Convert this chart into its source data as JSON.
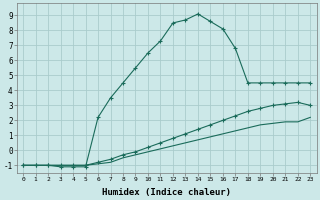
{
  "xlabel": "Humidex (Indice chaleur)",
  "bg_color": "#cce8e8",
  "grid_color": "#aacccc",
  "line_color": "#1a6b5a",
  "xlim": [
    -0.5,
    23.5
  ],
  "ylim": [
    -1.5,
    9.8
  ],
  "xtick_labels": [
    "0",
    "1",
    "2",
    "3",
    "4",
    "5",
    "6",
    "7",
    "8",
    "9",
    "10",
    "11",
    "12",
    "13",
    "14",
    "15",
    "16",
    "17",
    "18",
    "19",
    "20",
    "21",
    "22",
    "23"
  ],
  "ytick_labels": [
    "-1",
    "0",
    "1",
    "2",
    "3",
    "4",
    "5",
    "6",
    "7",
    "8",
    "9"
  ],
  "main_x": [
    0,
    1,
    2,
    3,
    4,
    5,
    6,
    7,
    8,
    9,
    10,
    11,
    12,
    13,
    14,
    15,
    16,
    17,
    18,
    19,
    20,
    21,
    22,
    23
  ],
  "main_y": [
    -1,
    -1,
    -1,
    -1.1,
    -1.1,
    -1.1,
    2.2,
    3.5,
    4.5,
    5.5,
    6.5,
    7.3,
    8.5,
    8.7,
    9.1,
    8.6,
    8.1,
    6.8,
    4.5,
    4.5,
    4.5,
    4.5,
    4.5,
    4.5
  ],
  "mid_x": [
    0,
    1,
    2,
    3,
    4,
    5,
    6,
    7,
    8,
    9,
    10,
    11,
    12,
    13,
    14,
    15,
    16,
    17,
    18,
    19,
    20,
    21,
    22,
    23
  ],
  "mid_y": [
    -1,
    -1,
    -1,
    -1.0,
    -1.0,
    -1.0,
    -0.8,
    -0.6,
    -0.3,
    -0.1,
    0.2,
    0.5,
    0.8,
    1.1,
    1.4,
    1.7,
    2.0,
    2.3,
    2.6,
    2.8,
    3.0,
    3.1,
    3.2,
    3.0
  ],
  "bot_x": [
    0,
    1,
    2,
    3,
    4,
    5,
    6,
    7,
    8,
    9,
    10,
    11,
    12,
    13,
    14,
    15,
    16,
    17,
    18,
    19,
    20,
    21,
    22,
    23
  ],
  "bot_y": [
    -1,
    -1,
    -1,
    -1.0,
    -1.0,
    -1.0,
    -0.9,
    -0.8,
    -0.5,
    -0.3,
    -0.1,
    0.1,
    0.3,
    0.5,
    0.7,
    0.9,
    1.1,
    1.3,
    1.5,
    1.7,
    1.8,
    1.9,
    1.9,
    2.2
  ]
}
